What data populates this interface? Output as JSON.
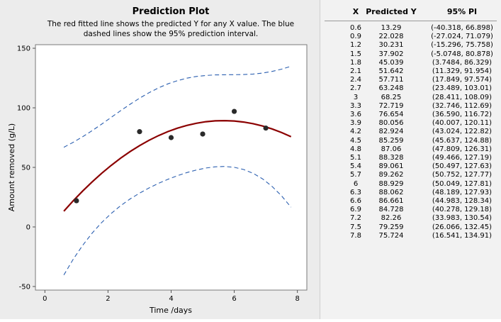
{
  "chart_data": {
    "type": "scatter",
    "title": "Prediction Plot",
    "subtitle": [
      "The red fitted line shows the predicted Y for any X value. The blue",
      "dashed lines show the 95% prediction interval."
    ],
    "xlabel": "Time /days",
    "ylabel": "Amount removed (g/L)",
    "xlim": [
      -0.3,
      8.3
    ],
    "ylim": [
      -53,
      153
    ],
    "xticks": [
      0,
      2,
      4,
      6,
      8
    ],
    "yticks": [
      -50,
      0,
      50,
      100,
      150
    ],
    "grid": false,
    "points": {
      "x": [
        1,
        3,
        4,
        5,
        6,
        7
      ],
      "y": [
        22,
        80,
        75,
        78,
        97,
        83
      ]
    },
    "colors": {
      "fit": "#8b0000",
      "interval": "#2b5fb0",
      "points": "#2a2a2a"
    }
  },
  "table": {
    "headers": [
      "X",
      "Predicted Y",
      "95% PI"
    ],
    "rows": [
      [
        "0.6",
        "13.29",
        "(-40.318, 66.898)"
      ],
      [
        "0.9",
        "22.028",
        "(-27.024, 71.079)"
      ],
      [
        "1.2",
        "30.231",
        "(-15.296, 75.758)"
      ],
      [
        "1.5",
        "37.902",
        "(-5.0748, 80.878)"
      ],
      [
        "1.8",
        "45.039",
        "(3.7484, 86.329)"
      ],
      [
        "2.1",
        "51.642",
        "(11.329, 91.954)"
      ],
      [
        "2.4",
        "57.711",
        "(17.849, 97.574)"
      ],
      [
        "2.7",
        "63.248",
        "(23.489, 103.01)"
      ],
      [
        "3",
        "68.25",
        "(28.411, 108.09)"
      ],
      [
        "3.3",
        "72.719",
        "(32.746, 112.69)"
      ],
      [
        "3.6",
        "76.654",
        "(36.590, 116.72)"
      ],
      [
        "3.9",
        "80.056",
        "(40.007, 120.11)"
      ],
      [
        "4.2",
        "82.924",
        "(43.024, 122.82)"
      ],
      [
        "4.5",
        "85.259",
        "(45.637, 124.88)"
      ],
      [
        "4.8",
        "87.06",
        "(47.809, 126.31)"
      ],
      [
        "5.1",
        "88.328",
        "(49.466, 127.19)"
      ],
      [
        "5.4",
        "89.061",
        "(50.497, 127.63)"
      ],
      [
        "5.7",
        "89.262",
        "(50.752, 127.77)"
      ],
      [
        "6",
        "88.929",
        "(50.049, 127.81)"
      ],
      [
        "6.3",
        "88.062",
        "(48.189, 127.93)"
      ],
      [
        "6.6",
        "86.661",
        "(44.983, 128.34)"
      ],
      [
        "6.9",
        "84.728",
        "(40.278, 129.18)"
      ],
      [
        "7.2",
        "82.26",
        "(33.983, 130.54)"
      ],
      [
        "7.5",
        "79.259",
        "(26.066, 132.45)"
      ],
      [
        "7.8",
        "75.724",
        "(16.541, 134.91)"
      ]
    ]
  }
}
